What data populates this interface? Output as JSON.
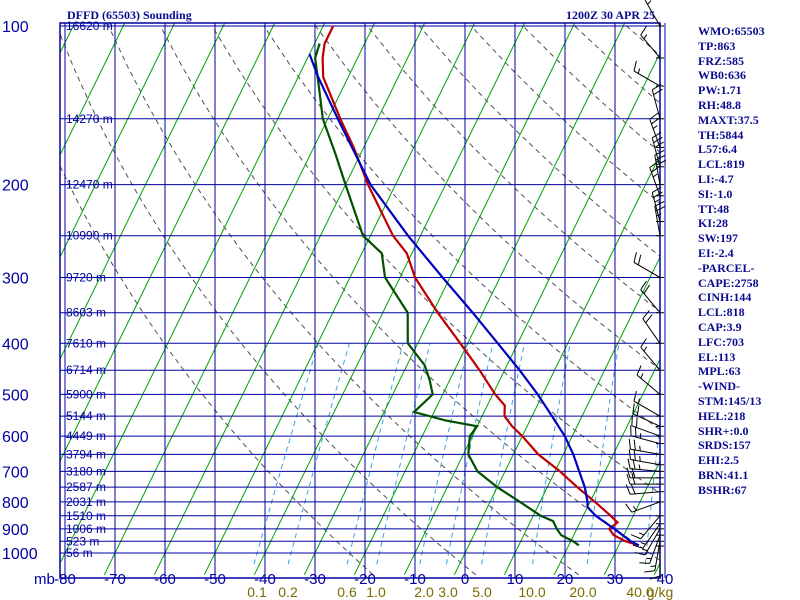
{
  "header": {
    "title": "DFFD (65503) Sounding",
    "valid_time": "1200Z 30 APR 25"
  },
  "indices": [
    "WMO:65503",
    "TP:863",
    "FRZ:585",
    "WB0:636",
    "PW:1.71",
    "RH:48.8",
    "MAXT:37.5",
    "TH:5844",
    "L57:6.4",
    "LCL:819",
    "LI:-4.7",
    "SI:-1.0",
    "TT:48",
    "KI:28",
    "SW:197",
    "EI:-2.4",
    "-PARCEL-",
    "CAPE:2758",
    "CINH:144",
    "LCL:818",
    "CAP:3.9",
    "LFC:703",
    "EL:113",
    "MPL:63",
    "-WIND-",
    "STM:145/13",
    "HEL:218",
    "SHR+:0.0",
    "SRDS:157",
    "EHI:2.5",
    "BRN:41.1",
    "BSHR:67"
  ],
  "colors": {
    "background": "#ffffff",
    "frame_and_isobars": "#0000a0",
    "isotherms": "#00a000",
    "dry_adiabats": "#505050",
    "mixing_ratio": "#40a0e0",
    "temperature": "#c00000",
    "dewpoint": "#005000",
    "parcel": "#0000c0",
    "wind_barbs": "#000000",
    "text": "#0a0a90",
    "mixing_ratio_labels": "#7a6a00"
  },
  "chart_data": {
    "type": "skew-t log-p sounding",
    "y_axis": {
      "unit": "mb",
      "range": [
        1000,
        100
      ],
      "scale": "log",
      "tick_labels": [
        "100",
        "200",
        "300",
        "400",
        "500",
        "600",
        "700",
        "800",
        "900",
        "1000"
      ]
    },
    "x_axis": {
      "unit": "°C",
      "range": [
        -80,
        40
      ],
      "tick_labels": [
        "-80",
        "-70",
        "-60",
        "-50",
        "-40",
        "-30",
        "-20",
        "-10",
        "0",
        "10",
        "20",
        "30",
        "40"
      ]
    },
    "corner_label": "mb",
    "height_labels": [
      {
        "p": 100,
        "label": "16620 m"
      },
      {
        "p": 150,
        "label": "14270 m"
      },
      {
        "p": 200,
        "label": "12470 m"
      },
      {
        "p": 250,
        "label": "10990 m"
      },
      {
        "p": 300,
        "label": "9720 m"
      },
      {
        "p": 350,
        "label": "8603 m"
      },
      {
        "p": 400,
        "label": "7610 m"
      },
      {
        "p": 450,
        "label": "6714 m"
      },
      {
        "p": 500,
        "label": "5900 m"
      },
      {
        "p": 550,
        "label": "5144 m"
      },
      {
        "p": 600,
        "label": "4449 m"
      },
      {
        "p": 650,
        "label": "3794 m"
      },
      {
        "p": 700,
        "label": "3180 m"
      },
      {
        "p": 750,
        "label": "2587 m"
      },
      {
        "p": 800,
        "label": "2031 m"
      },
      {
        "p": 850,
        "label": "1510 m"
      },
      {
        "p": 900,
        "label": "1006 m"
      },
      {
        "p": 950,
        "label": "523 m"
      },
      {
        "p": 1000,
        "label": "56 m"
      }
    ],
    "mixing_ratio_labels": [
      "0.1",
      "0.2",
      "0.6",
      "1.0",
      "2.0",
      "3.0",
      "5.0",
      "10.0",
      "20.0",
      "40.0",
      "g/kg"
    ],
    "mixing_ratio_lines": [
      0.1,
      0.2,
      0.6,
      1.0,
      2.0,
      3.0,
      5.0,
      10.0,
      20.0,
      40.0
    ],
    "isotherm_step_c": 10,
    "dry_adiabats_theta_k": [
      250,
      270,
      290,
      310,
      330,
      350,
      370,
      390,
      410,
      430,
      450,
      470,
      490
    ],
    "series": [
      {
        "name": "temperature",
        "points": [
          {
            "p": 967,
            "t": 34.0
          },
          {
            "p": 950,
            "t": 31.0
          },
          {
            "p": 925,
            "t": 28.0
          },
          {
            "p": 900,
            "t": 26.5
          },
          {
            "p": 875,
            "t": 27.5
          },
          {
            "p": 850,
            "t": 25.5
          },
          {
            "p": 800,
            "t": 21.0
          },
          {
            "p": 750,
            "t": 16.0
          },
          {
            "p": 700,
            "t": 11.0
          },
          {
            "p": 650,
            "t": 5.0
          },
          {
            "p": 600,
            "t": 0.0
          },
          {
            "p": 575,
            "t": -3.0
          },
          {
            "p": 550,
            "t": -5.5
          },
          {
            "p": 525,
            "t": -6.5
          },
          {
            "p": 500,
            "t": -9.5
          },
          {
            "p": 450,
            "t": -15.0
          },
          {
            "p": 400,
            "t": -21.5
          },
          {
            "p": 350,
            "t": -29.0
          },
          {
            "p": 300,
            "t": -37.0
          },
          {
            "p": 270,
            "t": -41.0
          },
          {
            "p": 250,
            "t": -45.5
          },
          {
            "p": 200,
            "t": -55.5
          },
          {
            "p": 170,
            "t": -62.0
          },
          {
            "p": 150,
            "t": -67.5
          },
          {
            "p": 125,
            "t": -75.0
          },
          {
            "p": 115,
            "t": -77.0
          },
          {
            "p": 108,
            "t": -78.0
          },
          {
            "p": 100,
            "t": -78.0
          }
        ]
      },
      {
        "name": "dewpoint",
        "points": [
          {
            "p": 967,
            "t": 22.0
          },
          {
            "p": 950,
            "t": 20.5
          },
          {
            "p": 925,
            "t": 17.5
          },
          {
            "p": 900,
            "t": 16.0
          },
          {
            "p": 870,
            "t": 14.5
          },
          {
            "p": 850,
            "t": 11.5
          },
          {
            "p": 800,
            "t": 6.0
          },
          {
            "p": 750,
            "t": 0.0
          },
          {
            "p": 700,
            "t": -5.5
          },
          {
            "p": 650,
            "t": -9.0
          },
          {
            "p": 600,
            "t": -10.5
          },
          {
            "p": 575,
            "t": -10.0
          },
          {
            "p": 560,
            "t": -17.0
          },
          {
            "p": 540,
            "t": -24.0
          },
          {
            "p": 500,
            "t": -22.0
          },
          {
            "p": 470,
            "t": -24.0
          },
          {
            "p": 440,
            "t": -26.5
          },
          {
            "p": 400,
            "t": -32.0
          },
          {
            "p": 350,
            "t": -35.0
          },
          {
            "p": 300,
            "t": -43.0
          },
          {
            "p": 270,
            "t": -46.0
          },
          {
            "p": 250,
            "t": -51.5
          },
          {
            "p": 200,
            "t": -60.0
          },
          {
            "p": 175,
            "t": -65.0
          },
          {
            "p": 150,
            "t": -71.0
          },
          {
            "p": 130,
            "t": -75.0
          },
          {
            "p": 115,
            "t": -78.5
          },
          {
            "p": 108,
            "t": -79.0
          }
        ]
      },
      {
        "name": "parcel",
        "points": [
          {
            "p": 967,
            "t": 34.0
          },
          {
            "p": 950,
            "t": 32.0
          },
          {
            "p": 900,
            "t": 27.5
          },
          {
            "p": 850,
            "t": 22.5
          },
          {
            "p": 818,
            "t": 20.0
          },
          {
            "p": 800,
            "t": 19.5
          },
          {
            "p": 750,
            "t": 17.5
          },
          {
            "p": 703,
            "t": 15.0
          },
          {
            "p": 650,
            "t": 12.0
          },
          {
            "p": 600,
            "t": 8.5
          },
          {
            "p": 550,
            "t": 4.0
          },
          {
            "p": 500,
            "t": -1.0
          },
          {
            "p": 450,
            "t": -7.0
          },
          {
            "p": 400,
            "t": -14.0
          },
          {
            "p": 350,
            "t": -22.0
          },
          {
            "p": 300,
            "t": -31.5
          },
          {
            "p": 250,
            "t": -42.5
          },
          {
            "p": 200,
            "t": -55.0
          },
          {
            "p": 150,
            "t": -68.0
          },
          {
            "p": 125,
            "t": -76.0
          },
          {
            "p": 113,
            "t": -80.0
          }
        ]
      }
    ],
    "wind_barbs_kt": [
      {
        "p": 970,
        "dir": 180,
        "spd": 10
      },
      {
        "p": 950,
        "dir": 190,
        "spd": 15
      },
      {
        "p": 925,
        "dir": 200,
        "spd": 15
      },
      {
        "p": 900,
        "dir": 210,
        "spd": 15
      },
      {
        "p": 880,
        "dir": 215,
        "spd": 15
      },
      {
        "p": 850,
        "dir": 220,
        "spd": 15
      },
      {
        "p": 800,
        "dir": 250,
        "spd": 15
      },
      {
        "p": 765,
        "dir": 265,
        "spd": 20
      },
      {
        "p": 740,
        "dir": 270,
        "spd": 20
      },
      {
        "p": 720,
        "dir": 270,
        "spd": 20
      },
      {
        "p": 700,
        "dir": 275,
        "spd": 25
      },
      {
        "p": 680,
        "dir": 280,
        "spd": 25
      },
      {
        "p": 650,
        "dir": 280,
        "spd": 25
      },
      {
        "p": 620,
        "dir": 285,
        "spd": 25
      },
      {
        "p": 600,
        "dir": 290,
        "spd": 20
      },
      {
        "p": 575,
        "dir": 295,
        "spd": 20
      },
      {
        "p": 550,
        "dir": 300,
        "spd": 15
      },
      {
        "p": 500,
        "dir": 310,
        "spd": 15
      },
      {
        "p": 450,
        "dir": 320,
        "spd": 15
      },
      {
        "p": 400,
        "dir": 325,
        "spd": 20
      },
      {
        "p": 350,
        "dir": 320,
        "spd": 20
      },
      {
        "p": 300,
        "dir": 300,
        "spd": 20
      },
      {
        "p": 250,
        "dir": 350,
        "spd": 25
      },
      {
        "p": 235,
        "dir": 345,
        "spd": 25
      },
      {
        "p": 210,
        "dir": 340,
        "spd": 25
      },
      {
        "p": 200,
        "dir": 350,
        "spd": 30
      },
      {
        "p": 185,
        "dir": 345,
        "spd": 30
      },
      {
        "p": 170,
        "dir": 340,
        "spd": 25
      },
      {
        "p": 150,
        "dir": 345,
        "spd": 20
      },
      {
        "p": 130,
        "dir": 300,
        "spd": 15
      },
      {
        "p": 115,
        "dir": 320,
        "spd": 15
      },
      {
        "p": 100,
        "dir": 330,
        "spd": 15
      }
    ]
  }
}
